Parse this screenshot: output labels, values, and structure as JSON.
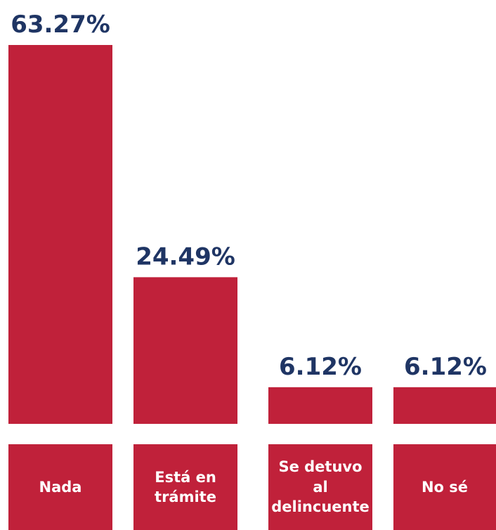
{
  "chart_data": {
    "type": "bar",
    "categories": [
      "Nada",
      "Está en trámite",
      "Se detuvo al delincuente",
      "No sé"
    ],
    "values": [
      63.27,
      24.49,
      6.12,
      6.12
    ],
    "value_labels": [
      "63.27%",
      "24.49%",
      "6.12%",
      "6.12%"
    ],
    "color": "#c0213a",
    "ylim": [
      0,
      63.27
    ]
  }
}
